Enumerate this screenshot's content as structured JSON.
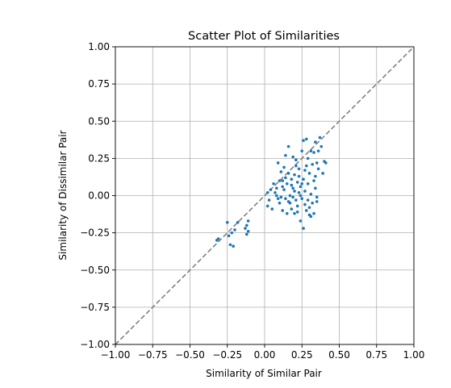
{
  "chart_data": {
    "type": "scatter",
    "title": "Scatter Plot of Similarities",
    "xlabel": "Similarity of Similar Pair",
    "ylabel": "Similarity of Dissimilar Pair",
    "xlim": [
      -1.0,
      1.0
    ],
    "ylim": [
      -1.0,
      1.0
    ],
    "xticks": [
      "−1.00",
      "−0.75",
      "−0.50",
      "−0.25",
      "0.00",
      "0.25",
      "0.50",
      "0.75",
      "1.00"
    ],
    "yticks": [
      "−1.00",
      "−0.75",
      "−0.50",
      "−0.25",
      "0.00",
      "0.25",
      "0.50",
      "0.75",
      "1.00"
    ],
    "xtick_values": [
      -1.0,
      -0.75,
      -0.5,
      -0.25,
      0.0,
      0.25,
      0.5,
      0.75,
      1.0
    ],
    "ytick_values": [
      -1.0,
      -0.75,
      -0.5,
      -0.25,
      0.0,
      0.25,
      0.5,
      0.75,
      1.0
    ],
    "grid": true,
    "reference_line": {
      "from": [
        -1.0,
        -1.0
      ],
      "to": [
        1.0,
        1.0
      ],
      "style": "dashed",
      "color": "#808080"
    },
    "point_color": "#1f77b4",
    "points": [
      [
        -0.32,
        -0.3
      ],
      [
        -0.31,
        -0.29
      ],
      [
        -0.25,
        -0.18
      ],
      [
        -0.24,
        -0.27
      ],
      [
        -0.23,
        -0.33
      ],
      [
        -0.21,
        -0.34
      ],
      [
        -0.22,
        -0.25
      ],
      [
        -0.2,
        -0.23
      ],
      [
        -0.18,
        -0.18
      ],
      [
        -0.13,
        -0.22
      ],
      [
        -0.12,
        -0.26
      ],
      [
        -0.12,
        -0.2
      ],
      [
        -0.11,
        -0.17
      ],
      [
        -0.11,
        -0.24
      ],
      [
        0.02,
        0.02
      ],
      [
        0.02,
        -0.07
      ],
      [
        0.03,
        -0.03
      ],
      [
        0.04,
        0.04
      ],
      [
        0.05,
        -0.09
      ],
      [
        0.06,
        0.08
      ],
      [
        0.07,
        0.02
      ],
      [
        0.08,
        0.0
      ],
      [
        0.08,
        0.05
      ],
      [
        0.09,
        0.22
      ],
      [
        0.1,
        0.1
      ],
      [
        0.1,
        -0.05
      ],
      [
        0.11,
        0.16
      ],
      [
        0.11,
        -0.01
      ],
      [
        0.12,
        0.06
      ],
      [
        0.12,
        -0.1
      ],
      [
        0.13,
        0.19
      ],
      [
        0.13,
        0.04
      ],
      [
        0.14,
        -0.02
      ],
      [
        0.14,
        0.12
      ],
      [
        0.15,
        0.08
      ],
      [
        0.15,
        -0.12
      ],
      [
        0.16,
        0.33
      ],
      [
        0.16,
        0.15
      ],
      [
        0.17,
        -0.05
      ],
      [
        0.17,
        0.0
      ],
      [
        0.18,
        0.11
      ],
      [
        0.18,
        -0.09
      ],
      [
        0.19,
        0.05
      ],
      [
        0.19,
        0.26
      ],
      [
        0.2,
        -0.12
      ],
      [
        0.2,
        0.14
      ],
      [
        0.21,
        -0.03
      ],
      [
        0.21,
        0.2
      ],
      [
        0.22,
        0.09
      ],
      [
        0.22,
        -0.07
      ],
      [
        0.23,
        0.02
      ],
      [
        0.23,
        0.13
      ],
      [
        0.24,
        -0.17
      ],
      [
        0.24,
        0.06
      ],
      [
        0.25,
        0.3
      ],
      [
        0.25,
        -0.02
      ],
      [
        0.26,
        0.37
      ],
      [
        0.26,
        -0.22
      ],
      [
        0.27,
        0.17
      ],
      [
        0.27,
        0.03
      ],
      [
        0.28,
        0.38
      ],
      [
        0.28,
        -0.1
      ],
      [
        0.29,
        0.25
      ],
      [
        0.29,
        0.08
      ],
      [
        0.3,
        -0.13
      ],
      [
        0.3,
        0.15
      ],
      [
        0.31,
        0.01
      ],
      [
        0.31,
        0.3
      ],
      [
        0.32,
        -0.05
      ],
      [
        0.32,
        0.21
      ],
      [
        0.33,
        0.1
      ],
      [
        0.33,
        -0.12
      ],
      [
        0.34,
        0.36
      ],
      [
        0.34,
        0.05
      ],
      [
        0.35,
        0.22
      ],
      [
        0.35,
        -0.01
      ],
      [
        0.36,
        0.3
      ],
      [
        0.36,
        0.18
      ],
      [
        0.38,
        0.33
      ],
      [
        0.39,
        0.15
      ],
      [
        0.4,
        0.23
      ],
      [
        0.41,
        0.22
      ],
      [
        0.37,
        0.39
      ],
      [
        0.29,
        -0.03
      ],
      [
        0.26,
        0.11
      ],
      [
        0.21,
        0.24
      ],
      [
        0.14,
        0.27
      ],
      [
        0.09,
        -0.02
      ],
      [
        0.18,
        0.07
      ],
      [
        0.23,
        0.18
      ],
      [
        0.27,
        -0.06
      ],
      [
        0.33,
        0.29
      ],
      [
        0.31,
        -0.14
      ],
      [
        0.24,
        0.0
      ],
      [
        0.2,
        0.03
      ],
      [
        0.16,
        -0.04
      ],
      [
        0.12,
        0.1
      ],
      [
        0.28,
        0.2
      ],
      [
        0.34,
        0.13
      ],
      [
        0.3,
        -0.08
      ],
      [
        0.22,
        -0.11
      ],
      [
        0.19,
        -0.01
      ],
      [
        0.25,
        0.08
      ],
      [
        0.35,
        -0.04
      ]
    ]
  }
}
